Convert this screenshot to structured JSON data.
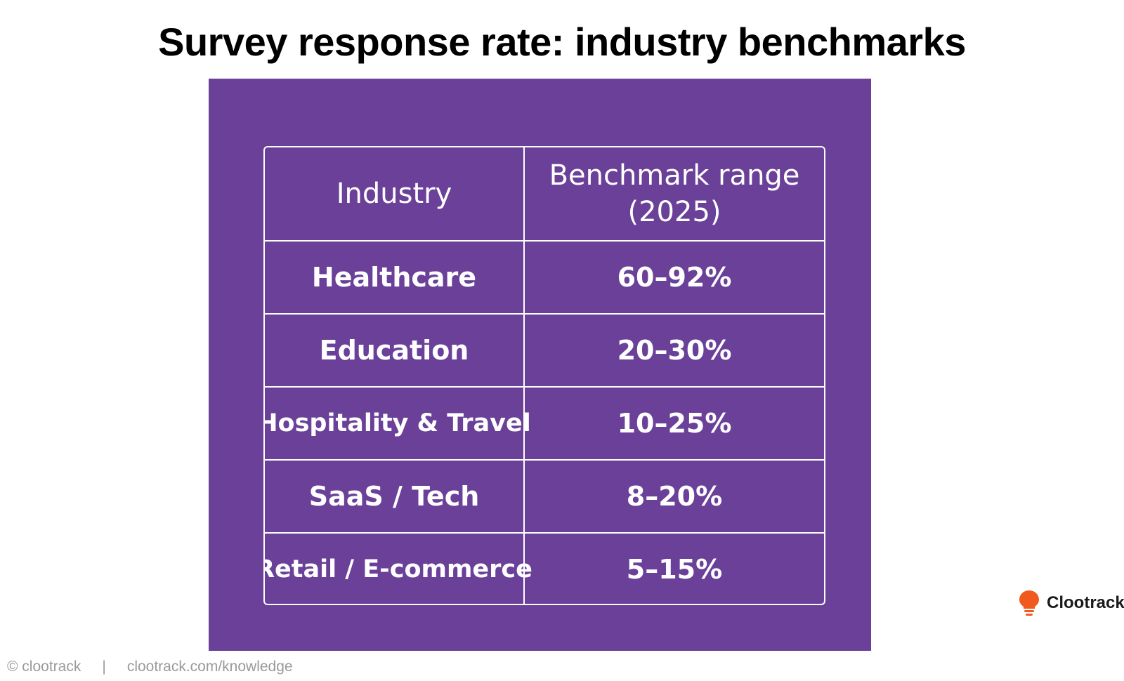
{
  "title": "Survey response rate: industry benchmarks",
  "table": {
    "headers": {
      "industry": "Industry",
      "range": "Benchmark range (2025)"
    },
    "rows": [
      {
        "industry": "Healthcare",
        "range": "60–92%"
      },
      {
        "industry": "Education",
        "range": "20–30%"
      },
      {
        "industry": "Hospitality & Travel",
        "range": "10–25%"
      },
      {
        "industry": "SaaS / Tech",
        "range": "8–20%"
      },
      {
        "industry": "Retail / E-commerce",
        "range": "5–15%"
      }
    ]
  },
  "brand": {
    "name": "Clootrack",
    "icon": "lightbulb-icon",
    "color": "#f05a1e"
  },
  "footer": {
    "copyright": "© clootrack",
    "separator": "|",
    "link": "clootrack.com/knowledge"
  },
  "colors": {
    "panel": "#6a4099",
    "table_text": "#ffffff"
  }
}
